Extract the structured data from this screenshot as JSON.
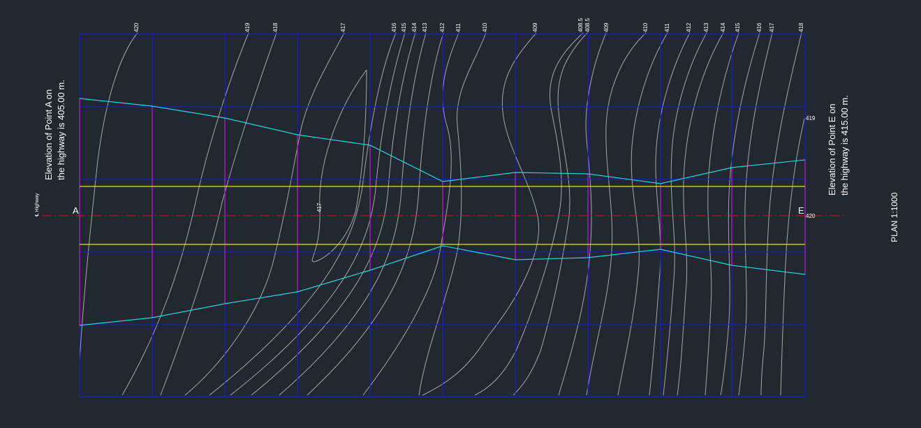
{
  "drawing": {
    "label_point_a": "A",
    "label_point_e": "E",
    "centerline_label": "℄ Highway",
    "note_a_line1": "Elevation of Point A on",
    "note_a_line2": "the highway is 405.00 m.",
    "note_e_line1": "Elevation of Point E on",
    "note_e_line2": "the highway is 415.00 m.",
    "scale_label": "PLAN 1:1000",
    "mid_label_417": "417",
    "right_label_419": "419",
    "right_label_420": "420"
  },
  "contour_top_labels": [
    "420",
    "419",
    "418",
    "417",
    "416",
    "415",
    "414",
    "413",
    "412",
    "411",
    "410",
    "409",
    "408.5",
    "408.5",
    "409",
    "410",
    "411",
    "412",
    "413",
    "414",
    "415",
    "416",
    "417",
    "418"
  ],
  "colors": {
    "background": "#212830",
    "grid": "#1a1ad0",
    "contour": "#a8a8a8",
    "road_edge": "#e5e51a",
    "centerline": "#c8102e",
    "cut_fill": "#22d4e0",
    "station": "#c21ec9",
    "text": "#ffffff"
  }
}
